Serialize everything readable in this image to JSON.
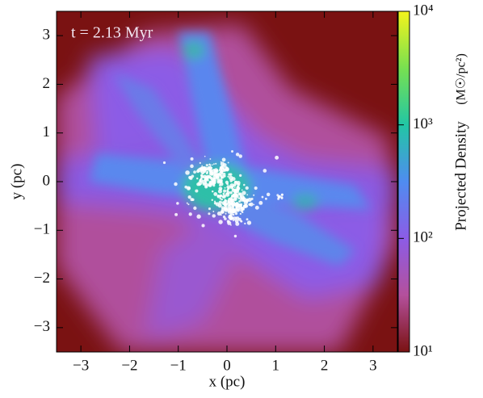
{
  "chart_data": {
    "type": "density-map",
    "annotation": "t = 2.13 Myr",
    "xlabel": "x  (pc)",
    "ylabel": "y  (pc)",
    "xlim": [
      -3.5,
      3.5
    ],
    "ylim": [
      -3.5,
      3.5
    ],
    "xticks": [
      {
        "value": -3,
        "label": "−3"
      },
      {
        "value": -2,
        "label": "−2"
      },
      {
        "value": -1,
        "label": "−1"
      },
      0,
      1,
      2,
      3
    ],
    "yticks": [
      {
        "value": -3,
        "label": "−3"
      },
      {
        "value": -2,
        "label": "−2"
      },
      {
        "value": -1,
        "label": "−1"
      },
      0,
      1,
      2,
      3
    ],
    "colorbar": {
      "label": "Projected Density",
      "unit": "(M☉/pc²)",
      "log": true,
      "clim": [
        10,
        10000
      ],
      "ticks": [
        {
          "value": 10,
          "label": "10¹"
        },
        {
          "value": 100,
          "label": "10²"
        },
        {
          "value": 1000,
          "label": "10³"
        },
        {
          "value": 10000,
          "label": "10⁴"
        }
      ],
      "colormap": [
        "#7a1212",
        "#b4509c",
        "#8c5ce6",
        "#4f8cf0",
        "#22c6a4",
        "#78e050",
        "#f4f41c"
      ]
    }
  }
}
